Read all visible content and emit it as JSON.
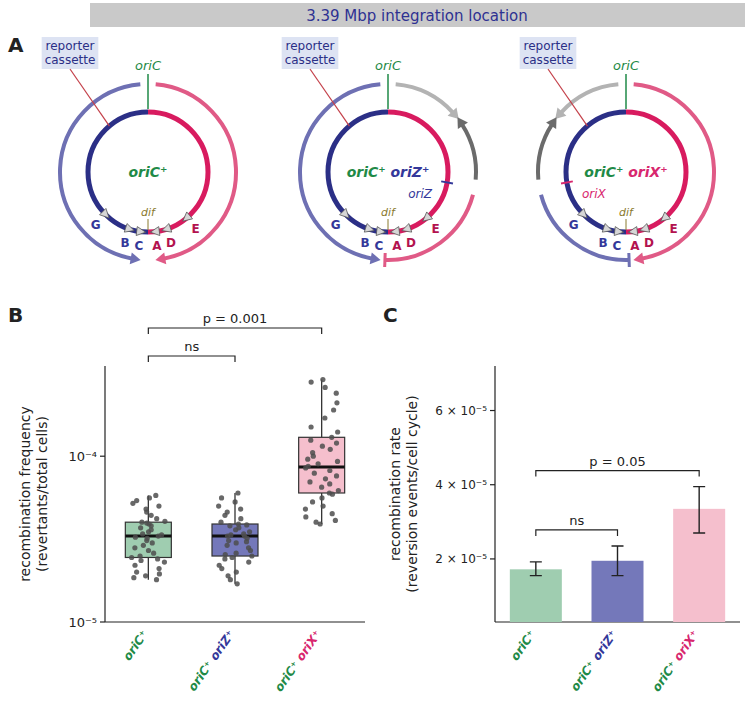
{
  "diagram": {
    "title": "3.39 Mbp integration location",
    "letter": "A",
    "origin_label": "oriC",
    "cassette_label": "reporter cassette",
    "site_label": "dif",
    "genes": [
      "G",
      "B",
      "C",
      "A",
      "D",
      "E"
    ],
    "panels": [
      {
        "name": "oriC⁺"
      },
      {
        "name": "oriC⁺ oriZ⁺",
        "extra_origin": "oriZ"
      },
      {
        "name": "oriC⁺ oriX⁺",
        "extra_origin": "oriX"
      }
    ]
  },
  "chart_data": [
    {
      "type": "box",
      "letter": "B",
      "ylabel": "recombination frequency (revertants/total cells)",
      "categories": [
        "oriC⁺",
        "oriC⁺ oriZ⁺",
        "oriC⁺ oriX⁺"
      ],
      "colors": [
        "#9fcdb0",
        "#7478ba",
        "#f5bfcd"
      ],
      "log": "y",
      "ylim": [
        1e-05,
        0.00035
      ],
      "yticks": [
        {
          "value": 1e-05,
          "label": "10⁻⁵"
        },
        {
          "value": 0.0001,
          "label": "10⁻⁴"
        }
      ],
      "whisker_low": [
        1.8e-05,
        1.7e-05,
        3.9e-05
      ],
      "q1": [
        2.45e-05,
        2.5e-05,
        6e-05
      ],
      "median": [
        3.3e-05,
        3.3e-05,
        8.6e-05
      ],
      "q3": [
        4e-05,
        3.9e-05,
        0.00013
      ],
      "whisker_high": [
        5.8e-05,
        6e-05,
        0.00029
      ],
      "points": [
        [
          1.8e-05,
          1.85e-05,
          1.9e-05,
          1.95e-05,
          2e-05,
          2.1e-05,
          2.2e-05,
          2.3e-05,
          2.35e-05,
          2.4e-05,
          2.45e-05,
          2.5e-05,
          2.6e-05,
          2.7e-05,
          2.8e-05,
          2.9e-05,
          3e-05,
          3.1e-05,
          3.2e-05,
          3.25e-05,
          3.3e-05,
          3.35e-05,
          3.4e-05,
          3.5e-05,
          3.6e-05,
          3.7e-05,
          3.8e-05,
          3.9e-05,
          3.95e-05,
          4e-05,
          4.05e-05,
          4.2e-05,
          4.4e-05,
          4.6e-05,
          4.8e-05,
          5e-05,
          5.2e-05,
          5.4e-05,
          5.6e-05,
          5.8e-05
        ],
        [
          1.7e-05,
          1.8e-05,
          1.9e-05,
          2e-05,
          2.1e-05,
          2.2e-05,
          2.3e-05,
          2.4e-05,
          2.45e-05,
          2.5e-05,
          2.55e-05,
          2.6e-05,
          2.7e-05,
          2.8e-05,
          2.9e-05,
          3e-05,
          3.05e-05,
          3.1e-05,
          3.2e-05,
          3.3e-05,
          3.3e-05,
          3.35e-05,
          3.4e-05,
          3.5e-05,
          3.6e-05,
          3.7e-05,
          3.8e-05,
          3.85e-05,
          3.9e-05,
          4e-05,
          4.2e-05,
          4.4e-05,
          4.6e-05,
          4.8e-05,
          5e-05,
          5.3e-05,
          5.6e-05,
          6e-05
        ],
        [
          3.9e-05,
          4e-05,
          4.1e-05,
          4.3e-05,
          4.5e-05,
          4.8e-05,
          5e-05,
          5.3e-05,
          5.6e-05,
          5.9e-05,
          6e-05,
          6.2e-05,
          6.5e-05,
          6.8e-05,
          7e-05,
          7.3e-05,
          7.6e-05,
          7.9e-05,
          8.2e-05,
          8.5e-05,
          8.7e-05,
          9e-05,
          9.3e-05,
          9.6e-05,
          0.0001,
          0.000105,
          0.00011,
          0.000115,
          0.00012,
          0.000125,
          0.00013,
          0.00014,
          0.00015,
          0.00017,
          0.00019,
          0.00021,
          0.00024,
          0.00026,
          0.00028,
          0.00029
        ]
      ],
      "annotations": [
        {
          "text": "ns",
          "groups": [
            "oriC⁺",
            "oriC⁺ oriZ⁺"
          ]
        },
        {
          "text": "p = 0.001",
          "groups": [
            "oriC⁺",
            "oriC⁺ oriX⁺"
          ]
        }
      ]
    },
    {
      "type": "bar",
      "letter": "C",
      "ylabel": "recombination rate (reversion events/cell cycle)",
      "categories": [
        "oriC⁺",
        "oriC⁺ oriZ⁺",
        "oriC⁺ oriX⁺"
      ],
      "colors": [
        "#9fcdb0",
        "#7478ba",
        "#f5bfcd"
      ],
      "values": [
        1.72e-05,
        1.95e-05,
        3.35e-05
      ],
      "error_minus": [
        1.7e-06,
        4e-06,
        6.5e-06
      ],
      "error_plus": [
        2e-06,
        4e-06,
        6e-06
      ],
      "ylim": [
        3e-06,
        7.2e-05
      ],
      "yticks": [
        {
          "value": 2e-05,
          "label": "2 × 10⁻⁵"
        },
        {
          "value": 4e-05,
          "label": "4 × 10⁻⁵"
        },
        {
          "value": 6e-05,
          "label": "6 × 10⁻⁵"
        }
      ],
      "annotations": [
        {
          "text": "ns",
          "groups": [
            "oriC⁺",
            "oriC⁺ oriZ⁺"
          ]
        },
        {
          "text": "p = 0.05",
          "groups": [
            "oriC⁺",
            "oriC⁺ oriX⁺"
          ]
        }
      ]
    }
  ]
}
